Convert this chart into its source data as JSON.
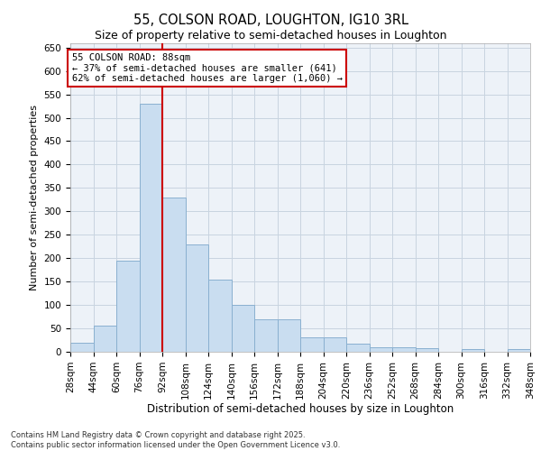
{
  "title": "55, COLSON ROAD, LOUGHTON, IG10 3RL",
  "subtitle": "Size of property relative to semi-detached houses in Loughton",
  "xlabel": "Distribution of semi-detached houses by size in Loughton",
  "ylabel": "Number of semi-detached properties",
  "annotation_text": "55 COLSON ROAD: 88sqm\n← 37% of semi-detached houses are smaller (641)\n62% of semi-detached houses are larger (1,060) →",
  "bin_labels": [
    "28sqm",
    "44sqm",
    "60sqm",
    "76sqm",
    "92sqm",
    "108sqm",
    "124sqm",
    "140sqm",
    "156sqm",
    "172sqm",
    "188sqm",
    "204sqm",
    "220sqm",
    "236sqm",
    "252sqm",
    "268sqm",
    "284sqm",
    "300sqm",
    "316sqm",
    "332sqm",
    "348sqm"
  ],
  "bin_edges": [
    28,
    44,
    60,
    76,
    92,
    108,
    124,
    140,
    156,
    172,
    188,
    204,
    220,
    236,
    252,
    268,
    284,
    300,
    316,
    332,
    348
  ],
  "bar_heights": [
    20,
    55,
    195,
    530,
    330,
    230,
    155,
    100,
    70,
    70,
    30,
    30,
    18,
    10,
    10,
    7,
    0,
    5,
    0,
    5
  ],
  "bar_color": "#c9ddf0",
  "bar_edge_color": "#8ab0d0",
  "vline_color": "#cc0000",
  "vline_x": 92,
  "ylim": [
    0,
    660
  ],
  "yticks": [
    0,
    50,
    100,
    150,
    200,
    250,
    300,
    350,
    400,
    450,
    500,
    550,
    600,
    650
  ],
  "grid_color": "#c8d4e0",
  "bg_color": "#edf2f8",
  "footnote": "Contains HM Land Registry data © Crown copyright and database right 2025.\nContains public sector information licensed under the Open Government Licence v3.0.",
  "annotation_box_color": "white",
  "annotation_box_edge": "#cc0000",
  "title_fontsize": 10.5,
  "subtitle_fontsize": 9,
  "ylabel_fontsize": 8,
  "xlabel_fontsize": 8.5,
  "tick_fontsize": 7.5,
  "annot_fontsize": 7.5,
  "footnote_fontsize": 6
}
